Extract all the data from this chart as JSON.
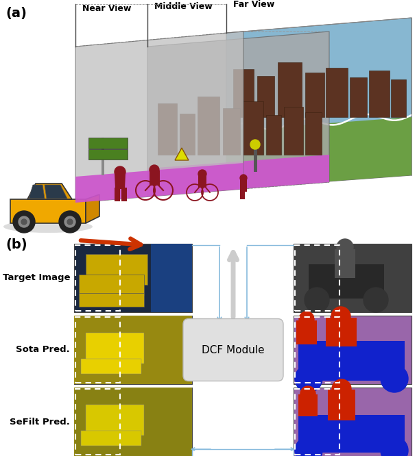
{
  "fig_width": 6.08,
  "fig_height": 6.66,
  "dpi": 100,
  "background_color": "#ffffff",
  "panel_a_label": "(a)",
  "panel_b_label": "(b)",
  "near_view_label": "Near View",
  "middle_view_label": "Middle View",
  "far_view_label": "Far View",
  "target_image_label": "Target Image",
  "sota_pred_label": "Sota Pred.",
  "sefilt_pred_label": "SeFilt Pred.",
  "dcf_module_label": "DCF Module",
  "sky_color": "#7aafcc",
  "grass_color": "#6a9e3c",
  "road_color": "#888888",
  "sidewalk_color": "#cc55cc",
  "building_color": "#5c3322",
  "building_dark": "#3a2010",
  "near_plane_color": "#cccccc",
  "mid_plane_color": "#aaaaaa",
  "person_color": "#8b1520",
  "arrow_color": "#cc3300",
  "dcf_box_color": "#e0e0e0",
  "connector_color": "#88bbdd",
  "conn_arrow_color": "#aaccee",
  "white_arrow_color": "#dddddd",
  "label_fontsize": 10,
  "panel_label_fontsize": 14
}
